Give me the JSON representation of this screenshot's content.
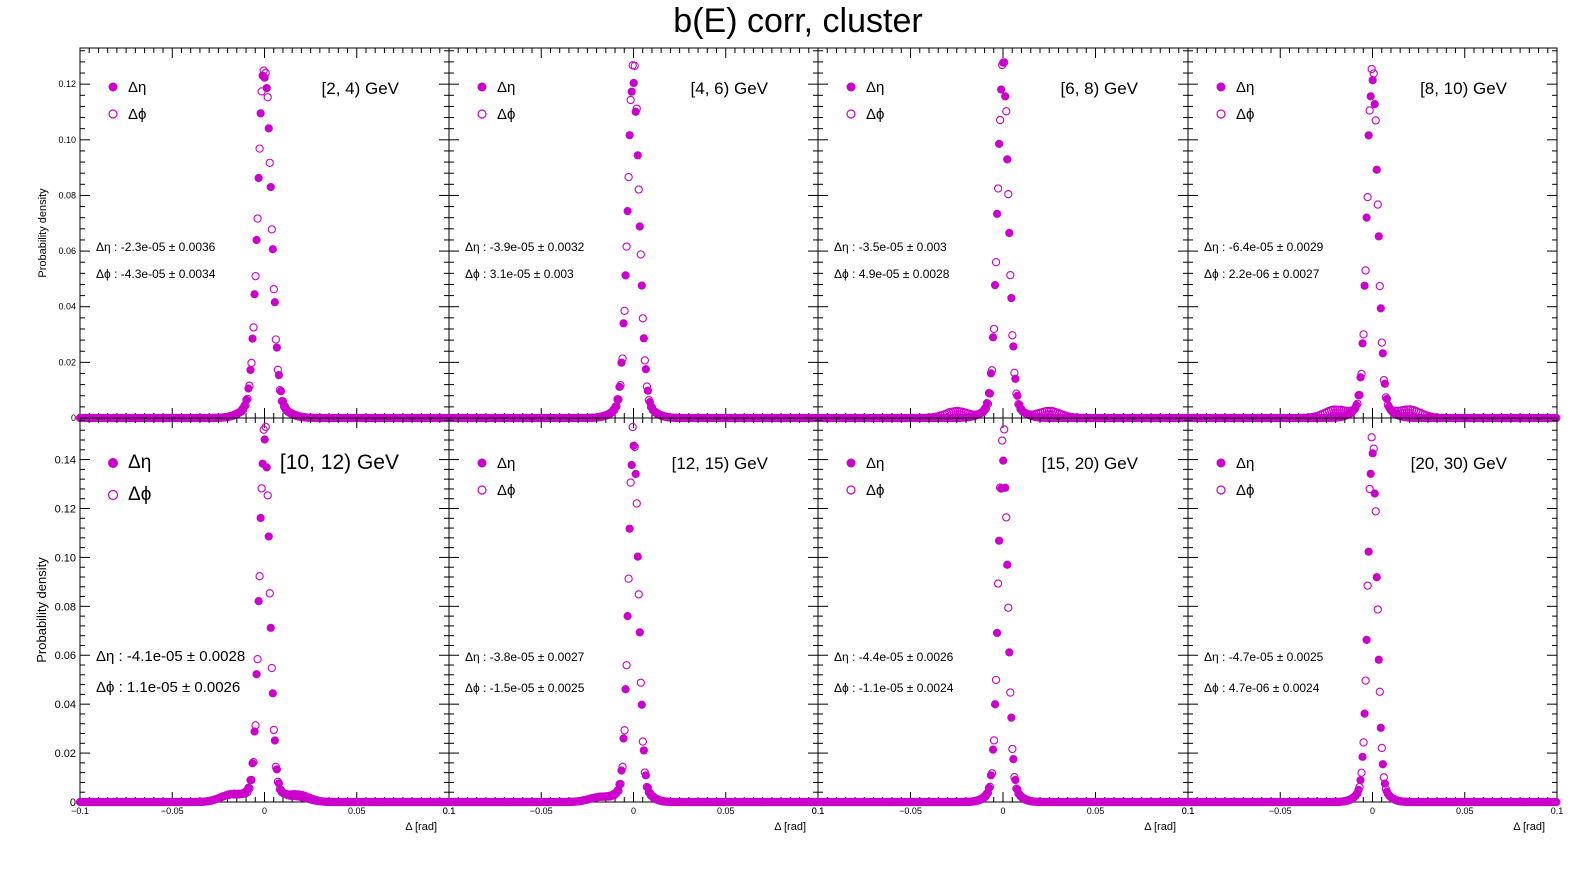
{
  "title": "b(E) corr, cluster",
  "colors": {
    "series": "#cc00cc",
    "axis": "#000000"
  },
  "shared": {
    "ylabel": "Probability density",
    "xlabel": "Δ  [rad]",
    "xlim": [
      -0.1,
      0.1
    ],
    "xticks": [
      -0.1,
      -0.05,
      0,
      0.05,
      0.1
    ],
    "legend": [
      {
        "name": "Δη",
        "marker": "filled-circle"
      },
      {
        "name": "Δϕ",
        "marker": "open-circle"
      }
    ]
  },
  "chart_data": [
    {
      "type": "scatter",
      "label": "[2, 4) GeV",
      "ylim": [
        0,
        0.133
      ],
      "yticks": [
        0,
        0.02,
        0.04,
        0.06,
        0.08,
        0.1,
        0.12
      ],
      "stats": {
        "eta": "Δη : -2.3e-05 ± 0.0036",
        "phi": "Δϕ : -4.3e-05 ± 0.0034"
      },
      "series": [
        {
          "name": "Δη",
          "peak": 0.118,
          "sigma": 0.0036,
          "mean": -2.3e-05,
          "bumps": []
        },
        {
          "name": "Δϕ",
          "peak": 0.121,
          "sigma": 0.0034,
          "mean": -4.3e-05,
          "bumps": []
        }
      ]
    },
    {
      "type": "scatter",
      "label": "[4, 6) GeV",
      "ylim": [
        0,
        0.133
      ],
      "yticks": [
        0,
        0.02,
        0.04,
        0.06,
        0.08,
        0.1,
        0.12
      ],
      "stats": {
        "eta": "Δη : -3.9e-05 ± 0.0032",
        "phi": "Δϕ : 3.1e-05 ± 0.003"
      },
      "series": [
        {
          "name": "Δη",
          "peak": 0.114,
          "sigma": 0.0032,
          "mean": -3.9e-05,
          "bumps": []
        },
        {
          "name": "Δϕ",
          "peak": 0.121,
          "sigma": 0.003,
          "mean": 3.1e-05,
          "bumps": []
        }
      ]
    },
    {
      "type": "scatter",
      "label": "[6, 8) GeV",
      "ylim": [
        0,
        0.133
      ],
      "yticks": [
        0,
        0.02,
        0.04,
        0.06,
        0.08,
        0.1,
        0.12
      ],
      "stats": {
        "eta": "Δη : -3.5e-05 ± 0.003",
        "phi": "Δϕ : 4.9e-05 ± 0.0028"
      },
      "series": [
        {
          "name": "Δη",
          "peak": 0.118,
          "sigma": 0.003,
          "mean": -3.5e-05,
          "bumps": []
        },
        {
          "name": "Δϕ",
          "peak": 0.121,
          "sigma": 0.0028,
          "mean": 4.9e-05,
          "bumps": [
            [
              -0.025,
              0.0025
            ],
            [
              0.025,
              0.0025
            ]
          ]
        }
      ]
    },
    {
      "type": "scatter",
      "label": "[8, 10) GeV",
      "ylim": [
        0,
        0.133
      ],
      "yticks": [
        0,
        0.02,
        0.04,
        0.06,
        0.08,
        0.1,
        0.12
      ],
      "stats": {
        "eta": "Δη : -6.4e-05 ± 0.0029",
        "phi": "Δϕ : 2.2e-06 ± 0.0027"
      },
      "series": [
        {
          "name": "Δη",
          "peak": 0.118,
          "sigma": 0.0029,
          "mean": -6.4e-05,
          "bumps": []
        },
        {
          "name": "Δϕ",
          "peak": 0.121,
          "sigma": 0.0027,
          "mean": 2.2e-06,
          "bumps": [
            [
              -0.02,
              0.003
            ],
            [
              0.02,
              0.003
            ]
          ]
        }
      ]
    },
    {
      "type": "scatter",
      "label": "[10, 12) GeV",
      "ylim": [
        0,
        0.157
      ],
      "yticks": [
        0,
        0.02,
        0.04,
        0.06,
        0.08,
        0.1,
        0.12,
        0.14
      ],
      "stats": {
        "eta": "Δη : -4.1e-05 ± 0.0028",
        "phi": "Δϕ : 1.1e-05 ± 0.0026"
      },
      "series": [
        {
          "name": "Δη",
          "peak": 0.14,
          "sigma": 0.0028,
          "mean": -4.1e-05,
          "bumps": [
            [
              -0.018,
              0.003
            ],
            [
              0.018,
              0.002
            ]
          ]
        },
        {
          "name": "Δϕ",
          "peak": 0.145,
          "sigma": 0.0026,
          "mean": 1.1e-05,
          "bumps": [
            [
              -0.018,
              0.003
            ],
            [
              0.018,
              0.003
            ]
          ]
        }
      ]
    },
    {
      "type": "scatter",
      "label": "[12, 15) GeV",
      "ylim": [
        0,
        0.157
      ],
      "yticks": [
        0,
        0.02,
        0.04,
        0.06,
        0.08,
        0.1,
        0.12,
        0.14
      ],
      "stats": {
        "eta": "Δη : -3.8e-05 ± 0.0027",
        "phi": "Δϕ : -1.5e-05 ± 0.0025"
      },
      "series": [
        {
          "name": "Δη",
          "peak": 0.138,
          "sigma": 0.0027,
          "mean": -3.8e-05,
          "bumps": [
            [
              -0.018,
              0.002
            ]
          ]
        },
        {
          "name": "Δϕ",
          "peak": 0.145,
          "sigma": 0.0025,
          "mean": -1.5e-05,
          "bumps": [
            [
              -0.018,
              0.002
            ]
          ]
        }
      ]
    },
    {
      "type": "scatter",
      "label": "[15, 20) GeV",
      "ylim": [
        0,
        0.157
      ],
      "yticks": [
        0,
        0.02,
        0.04,
        0.06,
        0.08,
        0.1,
        0.12,
        0.14
      ],
      "stats": {
        "eta": "Δη : -4.4e-05 ± 0.0026",
        "phi": "Δϕ : -1.1e-05 ± 0.0024"
      },
      "series": [
        {
          "name": "Δη",
          "peak": 0.132,
          "sigma": 0.0026,
          "mean": -4.4e-05,
          "bumps": []
        },
        {
          "name": "Δϕ",
          "peak": 0.145,
          "sigma": 0.0024,
          "mean": -1.1e-05,
          "bumps": []
        }
      ]
    },
    {
      "type": "scatter",
      "label": "[20, 30) GeV",
      "ylim": [
        0,
        0.157
      ],
      "yticks": [
        0,
        0.02,
        0.04,
        0.06,
        0.08,
        0.1,
        0.12,
        0.14
      ],
      "stats": {
        "eta": "Δη : -4.7e-05 ± 0.0025",
        "phi": "Δϕ : 4.7e-06 ± 0.0024"
      },
      "series": [
        {
          "name": "Δη",
          "peak": 0.132,
          "sigma": 0.0025,
          "mean": -4.7e-05,
          "bumps": []
        },
        {
          "name": "Δϕ",
          "peak": 0.145,
          "sigma": 0.0024,
          "mean": 4.7e-06,
          "bumps": []
        }
      ]
    }
  ]
}
